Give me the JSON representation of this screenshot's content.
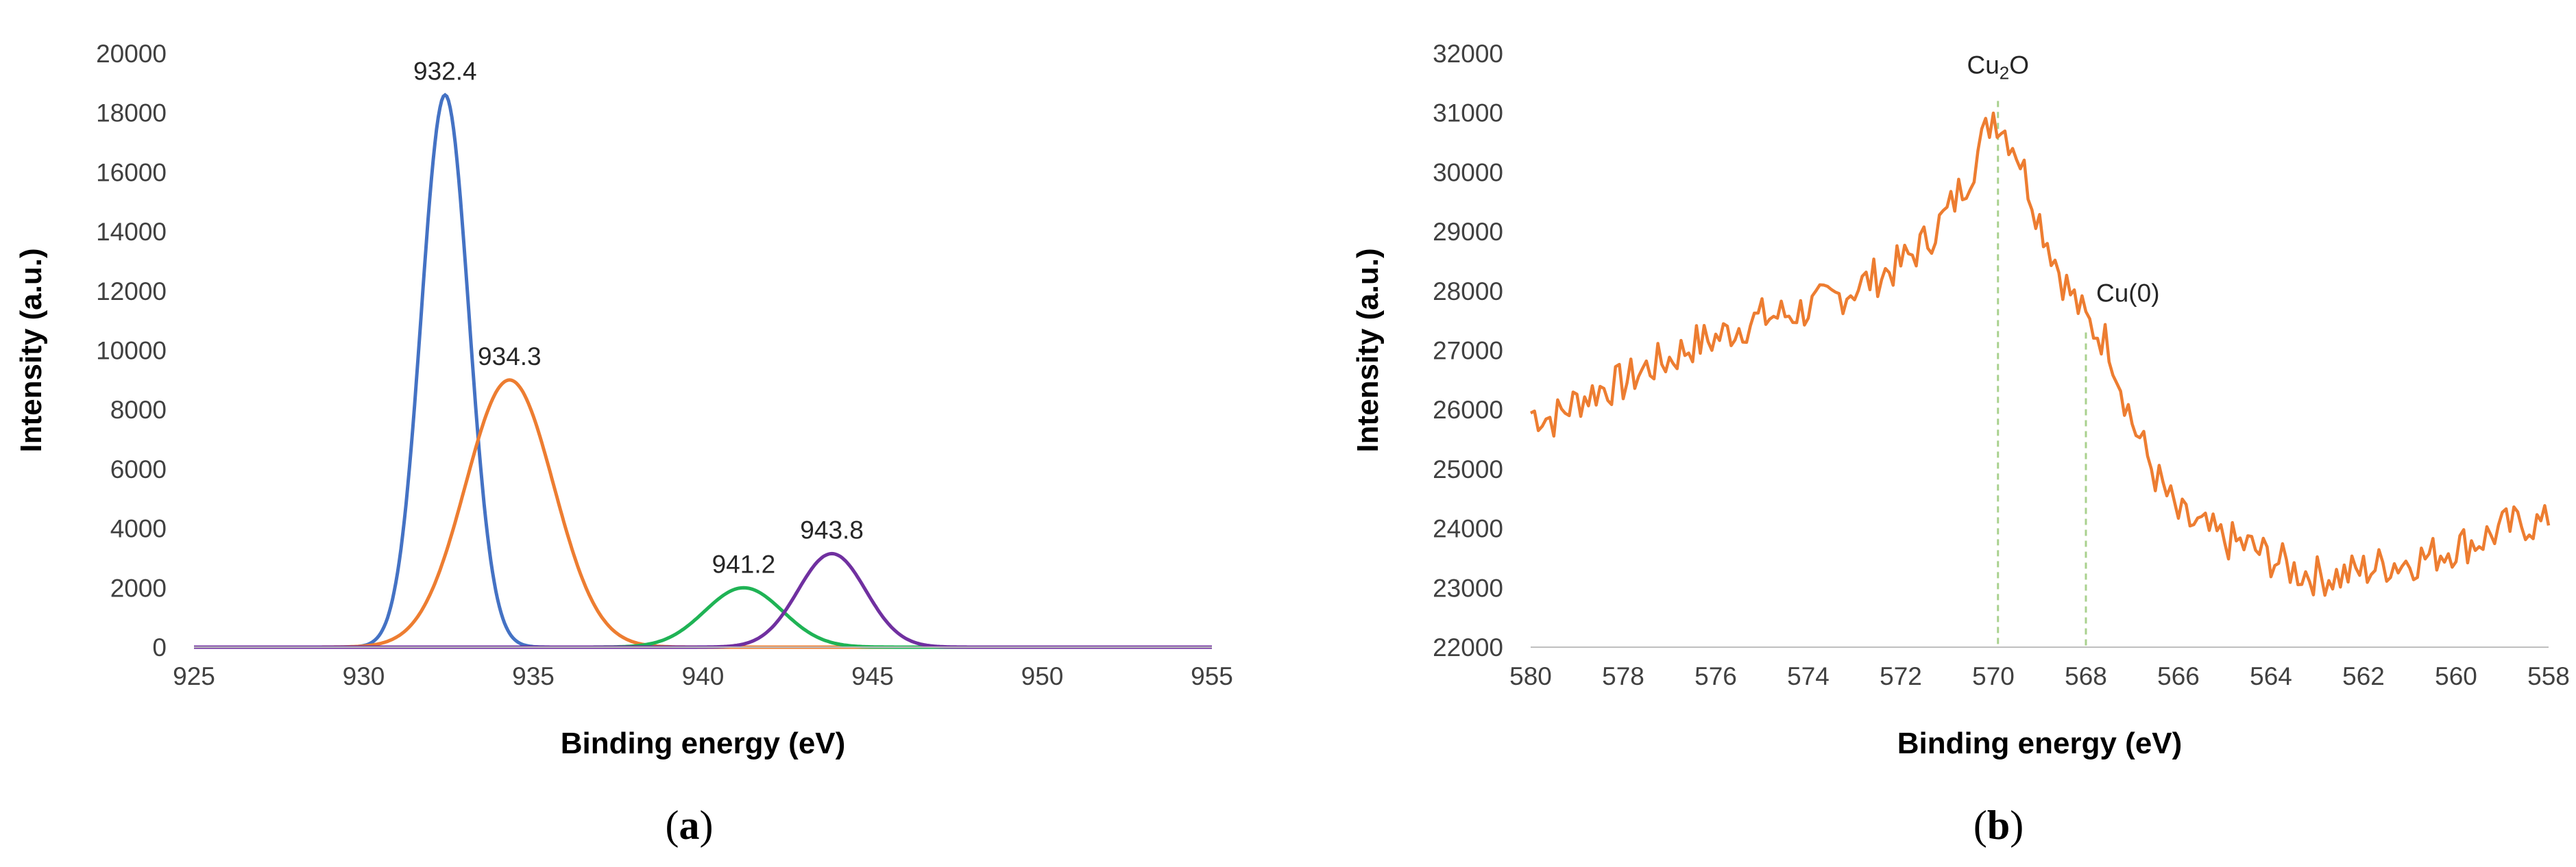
{
  "chart_data": [
    {
      "type": "line",
      "panel": "(a)",
      "panel_letter": "a",
      "xlabel": "Binding energy (eV)",
      "ylabel": "Intensity (a.u.)",
      "xlim": [
        925,
        955
      ],
      "ylim": [
        0,
        20000
      ],
      "x_ticks": [
        925,
        930,
        935,
        940,
        945,
        950,
        955
      ],
      "y_ticks": [
        0,
        2000,
        4000,
        6000,
        8000,
        10000,
        12000,
        14000,
        16000,
        18000,
        20000
      ],
      "grid": false,
      "legend": "none",
      "series": [
        {
          "color": "#4472C4",
          "peak_center": 932.4,
          "amplitude": 18600,
          "sigma": 0.7
        },
        {
          "color": "#ED7D31",
          "peak_center": 934.3,
          "amplitude": 9000,
          "sigma": 1.3
        },
        {
          "color": "#1FB355",
          "peak_center": 941.2,
          "amplitude": 2000,
          "sigma": 1.15
        },
        {
          "color": "#7030A0",
          "peak_center": 943.8,
          "amplitude": 3150,
          "sigma": 1.0
        }
      ],
      "annotations": [
        {
          "text": "932.4",
          "x": 932.4,
          "y": 18600
        },
        {
          "text": "934.3",
          "x": 934.3,
          "y": 9000
        },
        {
          "text": "941.2",
          "x": 941.2,
          "y": 2000
        },
        {
          "text": "943.8",
          "x": 943.8,
          "y": 3150
        }
      ]
    },
    {
      "type": "line",
      "panel": "(b)",
      "panel_letter": "b",
      "xlabel": "Binding energy (eV)",
      "ylabel": "Intensity (a.u.)",
      "xlim": [
        580,
        558
      ],
      "x_reversed": true,
      "ylim": [
        22000,
        32000
      ],
      "x_ticks": [
        580,
        578,
        576,
        574,
        572,
        570,
        568,
        566,
        564,
        562,
        560,
        558
      ],
      "y_ticks": [
        22000,
        23000,
        24000,
        25000,
        26000,
        27000,
        28000,
        29000,
        30000,
        31000,
        32000
      ],
      "grid": false,
      "legend": "none",
      "series": [
        {
          "color": "#ED7D31",
          "x": [
            580,
            579.5,
            579,
            578.5,
            578,
            577.5,
            577,
            576.5,
            576,
            575.5,
            575,
            574.5,
            574,
            573.5,
            573,
            572.5,
            572,
            571.5,
            571,
            570.5,
            570,
            569.5,
            569,
            568.5,
            568,
            567.5,
            567,
            566.5,
            566,
            565.5,
            565,
            564.5,
            564,
            563.5,
            563,
            562.5,
            562,
            561.5,
            561,
            560.5,
            560,
            559.5,
            559,
            558.5,
            558
          ],
          "values": [
            25950,
            25850,
            26150,
            26350,
            26450,
            26700,
            26850,
            27100,
            27200,
            27400,
            27550,
            27600,
            27700,
            27850,
            28050,
            28250,
            28450,
            28800,
            29300,
            30000,
            31000,
            30400,
            29200,
            28200,
            27500,
            27100,
            25800,
            24900,
            24200,
            24000,
            23800,
            23700,
            23500,
            23300,
            23200,
            23200,
            23300,
            23400,
            23450,
            23550,
            23700,
            23800,
            24000,
            24100,
            24050
          ]
        }
      ],
      "annotations": [
        {
          "text": "Cu",
          "sub": "2",
          "tail": "O",
          "x": 569.9,
          "y": 31200
        },
        {
          "text": "Cu(0)",
          "x": 568.0,
          "y": 27300
        }
      ],
      "reference_lines": [
        {
          "x": 569.9,
          "y_top": 31200,
          "color": "#A9D18E"
        },
        {
          "x": 568.0,
          "y_top": 27300,
          "color": "#A9D18E"
        }
      ]
    }
  ]
}
